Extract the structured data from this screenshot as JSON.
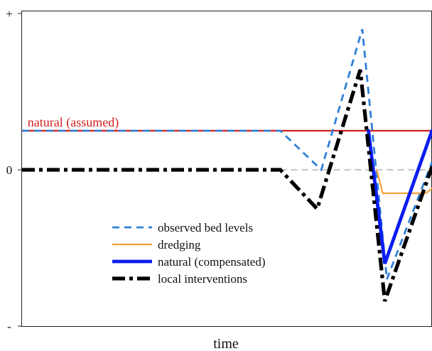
{
  "chart_data": {
    "type": "line",
    "title": "",
    "xlabel": "time",
    "ylabel": "",
    "y_tick_labels": [
      {
        "label": "+",
        "value": 1.0
      },
      {
        "label": "0",
        "value": 0.0
      },
      {
        "label": "-",
        "value": -1.0
      }
    ],
    "xlim": [
      0,
      1
    ],
    "ylim": [
      -1,
      1
    ],
    "grid": false,
    "legend_position": "lower-center",
    "annotations": [
      {
        "text": "natural (assumed)",
        "x": 0.01,
        "y": 0.26,
        "color": "#d21f1f"
      }
    ],
    "reference_lines": [
      {
        "name": "zero",
        "y": 0.0,
        "x_start": 0.63,
        "x_end": 1.0,
        "color": "#c8c8c8",
        "style": "dashed"
      }
    ],
    "series": [
      {
        "name": "",
        "key": "natural-assumed",
        "color": "#d21f1f",
        "style": "solid",
        "x": [
          0.0,
          1.0
        ],
        "y": [
          0.25,
          0.25
        ]
      },
      {
        "name": "observed bed levels",
        "key": "observed-bed-levels",
        "color": "#2f7fd8",
        "style": "dashed",
        "x": [
          0.0,
          0.63,
          0.73,
          0.83,
          0.89,
          1.0
        ],
        "y": [
          0.25,
          0.25,
          0.0,
          0.9,
          -0.7,
          0.05
        ]
      },
      {
        "name": "dredging",
        "key": "dredging",
        "color": "#f5a03a",
        "style": "solid",
        "x": [
          0.865,
          0.88,
          0.985,
          1.0
        ],
        "y": [
          0.0,
          -0.15,
          -0.15,
          -0.12
        ]
      },
      {
        "name": "natural (compensated)",
        "key": "natural-compensated",
        "color": "#0b1df2",
        "style": "solid",
        "x": [
          0.845,
          0.885,
          1.0
        ],
        "y": [
          0.25,
          -0.6,
          0.25
        ]
      },
      {
        "name": "local interventions",
        "key": "local-interventions",
        "color": "#000000",
        "style": "dashdot",
        "x": [
          0.0,
          0.63,
          0.72,
          0.825,
          0.885,
          1.0
        ],
        "y": [
          0.0,
          0.0,
          -0.25,
          0.64,
          -0.84,
          0.02
        ]
      }
    ],
    "legend": [
      {
        "label": "observed bed levels",
        "series": "observed-bed-levels"
      },
      {
        "label": "dredging",
        "series": "dredging"
      },
      {
        "label": "natural (compensated)",
        "series": "natural-compensated"
      },
      {
        "label": "local interventions",
        "series": "local-interventions"
      }
    ]
  }
}
